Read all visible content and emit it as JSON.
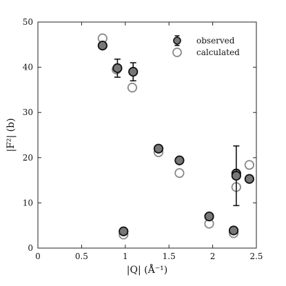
{
  "chart_data": {
    "type": "scatter",
    "xlabel": "|Q| (Å⁻¹)",
    "ylabel": "|F²| (b)",
    "xlim": [
      0,
      2.5
    ],
    "ylim": [
      0,
      50
    ],
    "xticks": [
      "0",
      "0.5",
      "1",
      "1.5",
      "2",
      "2.5"
    ],
    "yticks": [
      "0",
      "10",
      "20",
      "30",
      "40",
      "50"
    ],
    "grid": false,
    "legend_position": "top-right",
    "series": [
      {
        "name": "observed",
        "marker": "filled-circle",
        "color": "#777777",
        "points": [
          {
            "x": 0.74,
            "y": 44.8,
            "err": 0
          },
          {
            "x": 0.91,
            "y": 39.8,
            "err": 2.0
          },
          {
            "x": 0.98,
            "y": 3.7,
            "err": 0
          },
          {
            "x": 1.09,
            "y": 39.0,
            "err": 2.0
          },
          {
            "x": 1.38,
            "y": 22.0,
            "err": 0
          },
          {
            "x": 1.62,
            "y": 19.4,
            "err": 0
          },
          {
            "x": 1.96,
            "y": 7.0,
            "err": 0
          },
          {
            "x": 2.24,
            "y": 3.9,
            "err": 0
          },
          {
            "x": 2.27,
            "y": 16.5,
            "err": 0
          },
          {
            "x": 2.27,
            "y": 16.0,
            "err": 6.6
          },
          {
            "x": 2.42,
            "y": 15.3,
            "err": 0
          }
        ]
      },
      {
        "name": "calculated",
        "marker": "open-circle",
        "color": "#888888",
        "points": [
          {
            "x": 0.74,
            "y": 46.4
          },
          {
            "x": 0.9,
            "y": 39.5
          },
          {
            "x": 0.98,
            "y": 3.0
          },
          {
            "x": 1.08,
            "y": 35.5
          },
          {
            "x": 1.38,
            "y": 21.2
          },
          {
            "x": 1.62,
            "y": 16.6
          },
          {
            "x": 1.96,
            "y": 5.4
          },
          {
            "x": 2.24,
            "y": 3.3
          },
          {
            "x": 2.27,
            "y": 13.5
          },
          {
            "x": 2.42,
            "y": 18.4
          }
        ]
      }
    ]
  }
}
